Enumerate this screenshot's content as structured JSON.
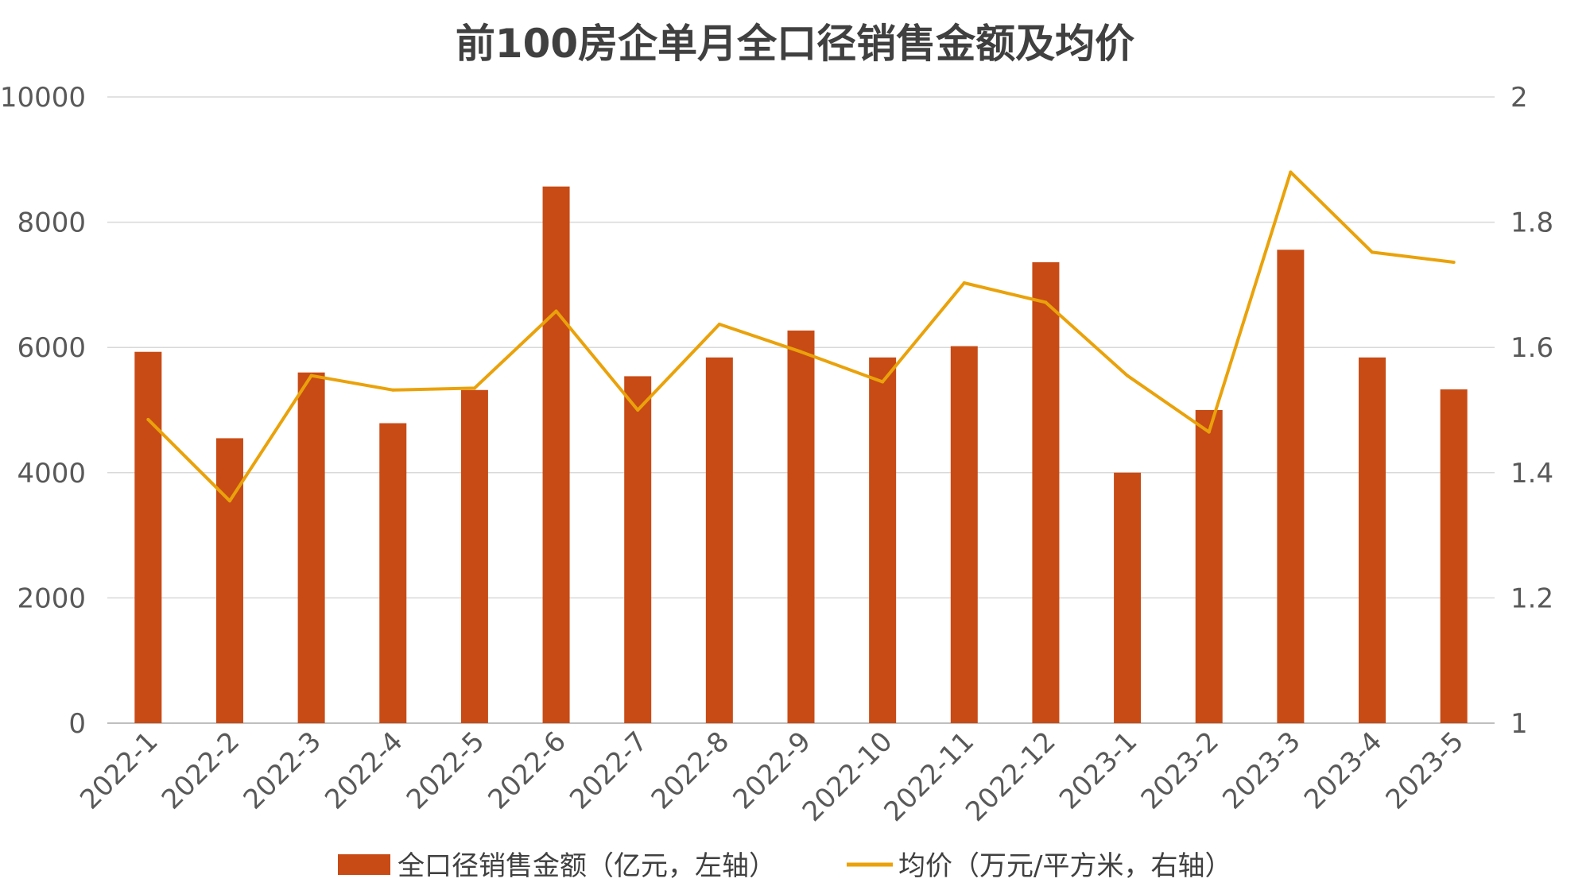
{
  "chart_data": {
    "type": "bar+line",
    "title": "前100房企单月全口径销售金额及均价",
    "categories": [
      "2022-1",
      "2022-2",
      "2022-3",
      "2022-4",
      "2022-5",
      "2022-6",
      "2022-7",
      "2022-8",
      "2022-9",
      "2022-10",
      "2022-11",
      "2022-12",
      "2023-1",
      "2023-2",
      "2023-3",
      "2023-4",
      "2023-5"
    ],
    "series": [
      {
        "name": "全口径销售金额（亿元，左轴）",
        "type": "bar",
        "axis": "left",
        "color": "#c84b16",
        "values": [
          5930,
          4550,
          5600,
          4790,
          5320,
          8570,
          5540,
          5840,
          6270,
          5840,
          6020,
          7360,
          4000,
          5000,
          7560,
          5840,
          5330
        ]
      },
      {
        "name": "均价（万元/平方米，右轴）",
        "type": "line",
        "axis": "right",
        "color": "#eaa20a",
        "values": [
          1.485,
          1.355,
          1.555,
          1.532,
          1.535,
          1.658,
          1.5,
          1.637,
          1.593,
          1.545,
          1.703,
          1.672,
          1.555,
          1.465,
          1.88,
          1.752,
          1.736
        ]
      }
    ],
    "y_left": {
      "min": 0,
      "max": 10000,
      "ticks": [
        "0",
        "2000",
        "4000",
        "6000",
        "8000",
        "10000"
      ]
    },
    "y_right": {
      "min": 1,
      "max": 2,
      "ticks": [
        "1",
        "1.2",
        "1.4",
        "1.6",
        "1.8",
        "2"
      ]
    },
    "grid": true,
    "legend": "bottom"
  }
}
